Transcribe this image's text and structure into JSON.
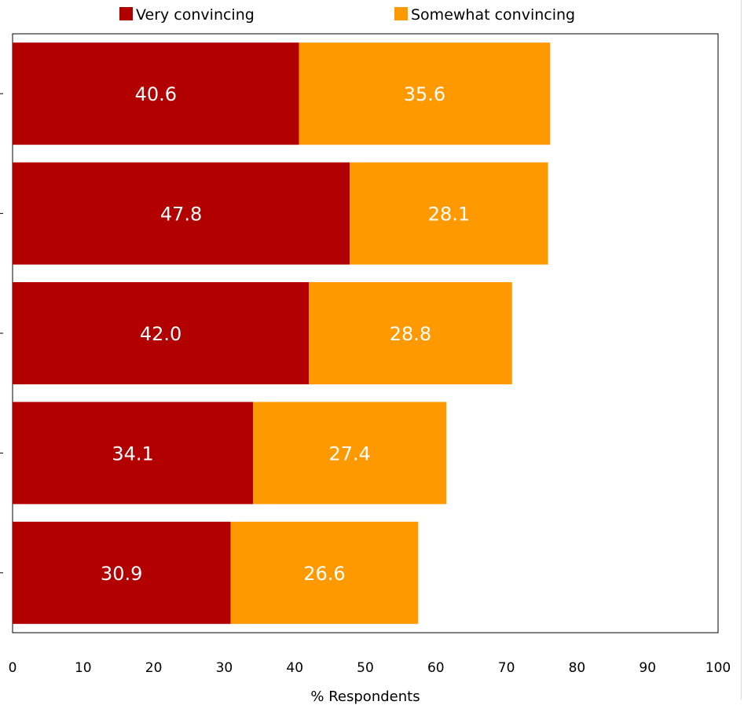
{
  "chart_data": {
    "type": "bar",
    "orientation": "horizontal",
    "stacked": true,
    "title": "",
    "categories": [
      "",
      "",
      "",
      "",
      ""
    ],
    "series": [
      {
        "name": "Very convincing",
        "color": "#B20000",
        "values": [
          40.6,
          47.8,
          42.0,
          34.1,
          30.9
        ],
        "labels": [
          "40.6",
          "47.8",
          "42.0",
          "34.1",
          "30.9"
        ]
      },
      {
        "name": "Somewhat convincing",
        "color": "#FF9900",
        "values": [
          35.6,
          28.1,
          28.8,
          27.4,
          26.6
        ],
        "labels": [
          "35.6",
          "28.1",
          "28.8",
          "27.4",
          "26.6"
        ]
      }
    ],
    "xlabel": "% Respondents",
    "ylabel": "",
    "xlim": [
      0,
      100
    ],
    "xticks": [
      "0",
      "10",
      "20",
      "30",
      "40",
      "50",
      "60",
      "70",
      "80",
      "90",
      "100"
    ],
    "grid": false,
    "legend": "top-center",
    "data_label_color": "#FFFFFF",
    "axis_color": "#000000",
    "tick_label_color": "#000000"
  }
}
